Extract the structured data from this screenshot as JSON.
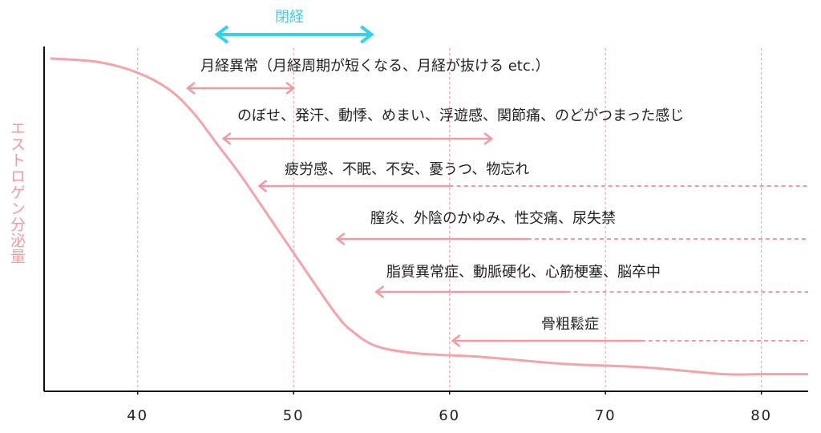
{
  "chart_data": {
    "type": "line",
    "y_label": "エストロゲン分泌量",
    "x": [
      34.4,
      37.4,
      39.9,
      42.0,
      43.6,
      45.1,
      46.6,
      48.7,
      50.8,
      52.8,
      53.9,
      55.4,
      58.0,
      62.1,
      67.3,
      72.4,
      77.6,
      80.0,
      83
    ],
    "values": [
      97,
      96,
      93,
      88,
      81,
      72,
      63,
      49,
      35,
      22,
      17,
      13,
      11,
      10,
      8,
      7,
      5,
      5,
      5
    ],
    "color": "#f4a3a8",
    "xlim": [
      34,
      83
    ],
    "xticks": [
      40,
      50,
      60,
      70,
      80
    ],
    "ylim": [
      0,
      100
    ],
    "grid": true,
    "ranges": [
      {
        "label": "閉経",
        "start": 45.1,
        "end": 55,
        "double": true,
        "color": "#2fd3ea"
      },
      {
        "label": "月経異常（月経周期が短くなる、月経が抜ける etc.）",
        "start": 43.2,
        "end": 50,
        "double": true,
        "color": "#f29aa0"
      },
      {
        "label": "のぼせ、発汗、動悸、めまい、浮遊感、関節痛、のどがつまった感じ",
        "start": 45.5,
        "end": 62.7,
        "double": true,
        "color": "#f29aa0"
      },
      {
        "label": "疲労感、不眠、不安、憂うつ、物忘れ",
        "start": 47.8,
        "end": 60,
        "double": false,
        "color": "#f29aa0"
      },
      {
        "label": "膣炎、外陰のかゆみ、性交痛、尿失禁",
        "start": 52.8,
        "end": 65,
        "double": false,
        "color": "#f29aa0"
      },
      {
        "label": "脂質異常症、動脈硬化、心筋梗塞、脳卒中",
        "start": 55.3,
        "end": 67.5,
        "double": false,
        "color": "#f29aa0"
      },
      {
        "label": "骨粗鬆症",
        "start": 60.2,
        "end": 72.3,
        "double": false,
        "color": "#f29aa0"
      }
    ]
  }
}
